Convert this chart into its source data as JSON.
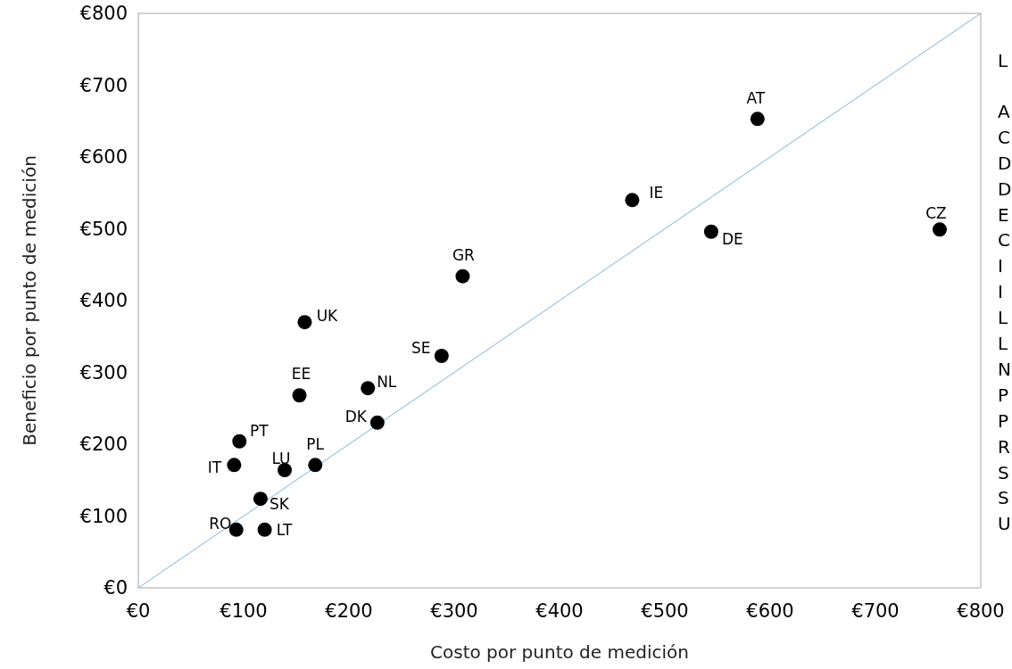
{
  "chart_data": {
    "type": "scatter",
    "xlabel": "Costo por punto de medición",
    "ylabel": "Beneficio por punto de medición",
    "xlim": [
      0,
      800
    ],
    "ylim": [
      0,
      800
    ],
    "xticks": [
      {
        "value": 0,
        "label": "€0"
      },
      {
        "value": 100,
        "label": "€100"
      },
      {
        "value": 200,
        "label": "€200"
      },
      {
        "value": 300,
        "label": "€300"
      },
      {
        "value": 400,
        "label": "€400"
      },
      {
        "value": 500,
        "label": "€500"
      },
      {
        "value": 600,
        "label": "€600"
      },
      {
        "value": 700,
        "label": "€700"
      },
      {
        "value": 800,
        "label": "€800"
      }
    ],
    "yticks": [
      {
        "value": 0,
        "label": "€0"
      },
      {
        "value": 100,
        "label": "€100"
      },
      {
        "value": 200,
        "label": "€200"
      },
      {
        "value": 300,
        "label": "€300"
      },
      {
        "value": 400,
        "label": "€400"
      },
      {
        "value": 500,
        "label": "€500"
      },
      {
        "value": 600,
        "label": "€600"
      },
      {
        "value": 700,
        "label": "€700"
      },
      {
        "value": 800,
        "label": "€800"
      }
    ],
    "grid": false,
    "marker": "circle",
    "series": [
      {
        "type": "line",
        "color": "#7fb0d8",
        "x": [
          0,
          800
        ],
        "values": [
          0,
          800
        ],
        "marker": "none"
      },
      {
        "color": "#000000",
        "x": [
          588,
          469,
          544,
          761,
          308,
          158,
          288,
          153,
          218,
          227,
          96,
          168,
          139,
          91,
          116,
          93,
          120
        ],
        "values": [
          653,
          540,
          496,
          499,
          434,
          370,
          323,
          268,
          278,
          230,
          204,
          171,
          164,
          171,
          124,
          81,
          81
        ]
      }
    ],
    "annotations": [
      {
        "text": "AT",
        "x": 588,
        "y": 653
      },
      {
        "text": "IE",
        "x": 469,
        "y": 540
      },
      {
        "text": "DE",
        "x": 544,
        "y": 496
      },
      {
        "text": "CZ",
        "x": 761,
        "y": 499
      },
      {
        "text": "GR",
        "x": 308,
        "y": 434
      },
      {
        "text": "UK",
        "x": 158,
        "y": 370
      },
      {
        "text": "SE",
        "x": 288,
        "y": 323
      },
      {
        "text": "EE",
        "x": 153,
        "y": 268
      },
      {
        "text": "NL",
        "x": 218,
        "y": 278
      },
      {
        "text": "DK",
        "x": 227,
        "y": 230
      },
      {
        "text": "PT",
        "x": 96,
        "y": 204
      },
      {
        "text": "PL",
        "x": 168,
        "y": 171
      },
      {
        "text": "LU",
        "x": 139,
        "y": 164
      },
      {
        "text": "IT",
        "x": 91,
        "y": 171
      },
      {
        "text": "SK",
        "x": 116,
        "y": 124
      },
      {
        "text": "RO",
        "x": 93,
        "y": 81
      },
      {
        "text": "LT",
        "x": 120,
        "y": 81
      },
      "L",
      "A",
      "C",
      "D",
      "D",
      "E",
      "C",
      "I",
      "I",
      "L",
      "L",
      "N",
      "P",
      "P",
      "R",
      "S",
      "S",
      "U"
    ]
  }
}
